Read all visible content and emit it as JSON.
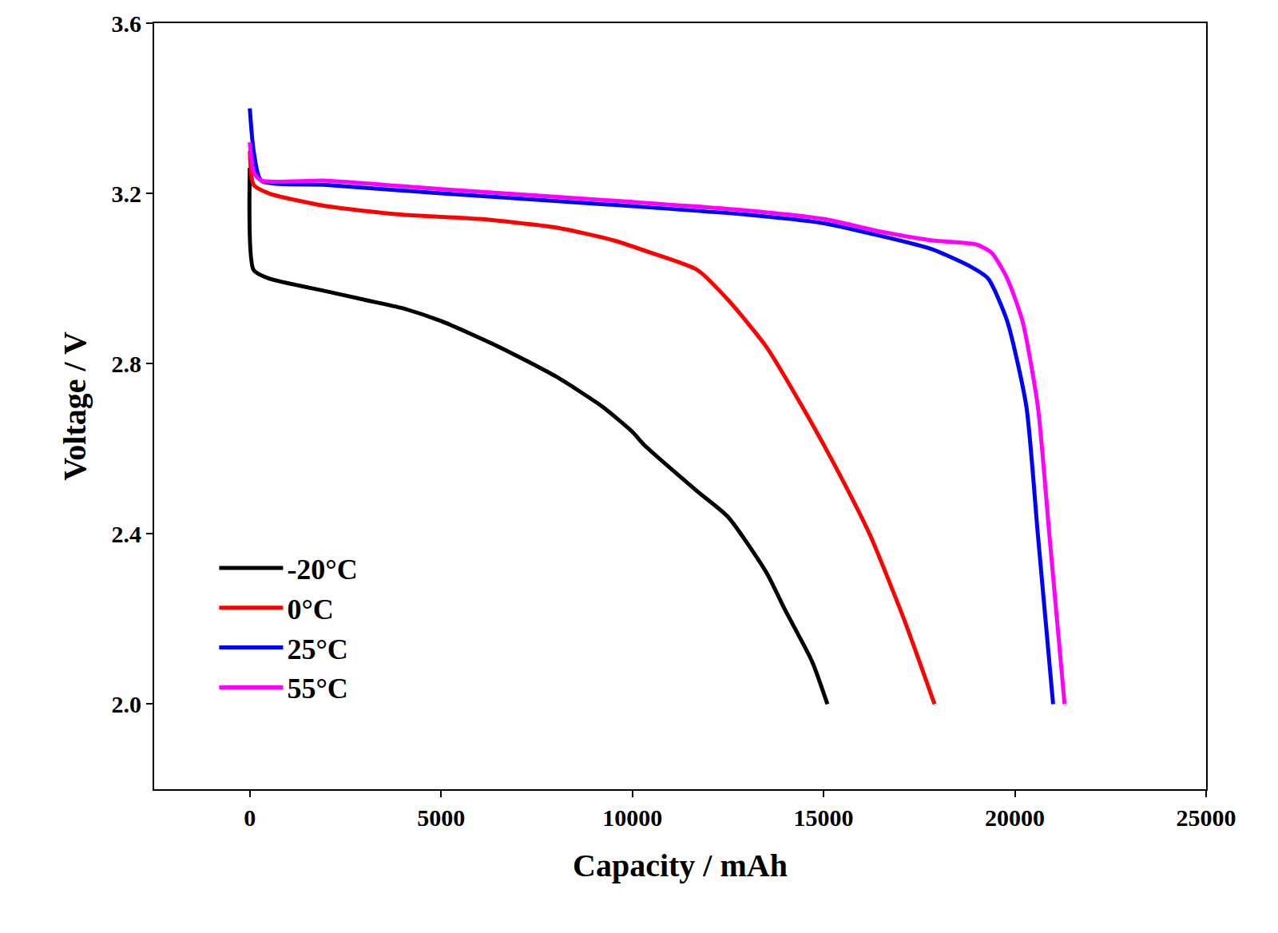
{
  "chart_data": {
    "type": "line",
    "x_label": "Capacity / mAh",
    "y_label": "Voltage / V",
    "xlim": [
      -2500,
      25000
    ],
    "xticks": [
      0,
      5000,
      10000,
      15000,
      20000,
      25000
    ],
    "ylim": [
      1.8,
      3.6
    ],
    "yticks": [
      {
        "value": 2,
        "label": "2.0"
      },
      2.4,
      2.8,
      3.2,
      3.6
    ],
    "grid": false,
    "legend": "lower left",
    "series": [
      {
        "name": "-20°C",
        "color": "#000000",
        "x": [
          0,
          100,
          500,
          2000,
          3000,
          4000,
          5000,
          6500,
          8000,
          9200,
          10000,
          10300,
          11700,
          12500,
          13500,
          14000,
          14700,
          15100
        ],
        "values": [
          3.26,
          3.02,
          3.0,
          2.97,
          2.95,
          2.93,
          2.9,
          2.84,
          2.77,
          2.7,
          2.64,
          2.61,
          2.5,
          2.44,
          2.31,
          2.22,
          2.1,
          2.0
        ]
      },
      {
        "name": "0°C",
        "color": "#ff0000",
        "x": [
          0,
          100,
          500,
          2000,
          4000,
          6000,
          8000,
          9500,
          10500,
          11700,
          12500,
          13500,
          14500,
          15300,
          16200,
          17100,
          17900
        ],
        "values": [
          3.3,
          3.22,
          3.2,
          3.17,
          3.15,
          3.14,
          3.12,
          3.09,
          3.06,
          3.02,
          2.95,
          2.84,
          2.69,
          2.56,
          2.4,
          2.2,
          2.0
        ]
      },
      {
        "name": "25°C",
        "color": "#0000ff",
        "x": [
          0,
          100,
          300,
          2000,
          5000,
          10000,
          13000,
          15000,
          16500,
          17800,
          18800,
          19300,
          19800,
          20300,
          20600,
          21000
        ],
        "values": [
          3.4,
          3.3,
          3.23,
          3.22,
          3.2,
          3.17,
          3.15,
          3.13,
          3.1,
          3.07,
          3.03,
          3.0,
          2.9,
          2.7,
          2.4,
          2.0
        ]
      },
      {
        "name": "55°C",
        "color": "#ff00ff",
        "x": [
          0,
          100,
          300,
          2000,
          5000,
          10000,
          13000,
          15000,
          16500,
          17800,
          19000,
          19400,
          19800,
          20200,
          20600,
          20900,
          21300
        ],
        "values": [
          3.32,
          3.25,
          3.23,
          3.23,
          3.21,
          3.18,
          3.16,
          3.14,
          3.11,
          3.09,
          3.08,
          3.06,
          3.0,
          2.9,
          2.7,
          2.4,
          2.0
        ]
      }
    ]
  }
}
